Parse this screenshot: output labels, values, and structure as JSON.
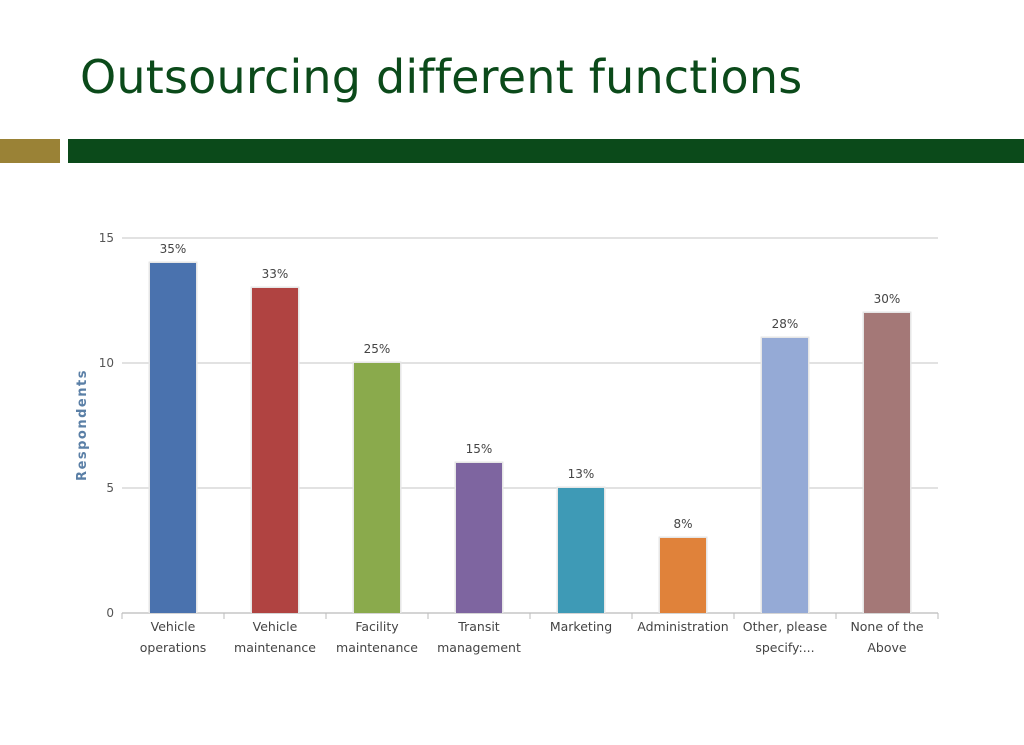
{
  "slide": {
    "title": "Outsourcing different functions"
  },
  "colors": {
    "title": "#0b4a1a",
    "accent_bar": "#9a8236",
    "main_bar": "#0b4a1a"
  },
  "chart_data": {
    "type": "bar",
    "title": "",
    "xlabel": "",
    "ylabel": "Respondents",
    "ylim": [
      0,
      15
    ],
    "yticks": [
      0,
      5,
      10,
      15
    ],
    "grid": true,
    "categories": [
      [
        "Vehicle",
        "operations"
      ],
      [
        "Vehicle",
        "maintenance"
      ],
      [
        "Facility",
        "maintenance"
      ],
      [
        "Transit",
        "management"
      ],
      [
        "Marketing"
      ],
      [
        "Administration"
      ],
      [
        "Other, please",
        "specify:..."
      ],
      [
        "None of the",
        "Above"
      ]
    ],
    "values": [
      14,
      13,
      10,
      6,
      5,
      3,
      11,
      12
    ],
    "data_labels": [
      "35%",
      "33%",
      "25%",
      "15%",
      "13%",
      "8%",
      "28%",
      "30%"
    ],
    "colors": [
      "#4a72ae",
      "#b04341",
      "#8aaa4c",
      "#7e65a0",
      "#3e9ab6",
      "#e0823a",
      "#95aad6",
      "#a47877"
    ]
  }
}
